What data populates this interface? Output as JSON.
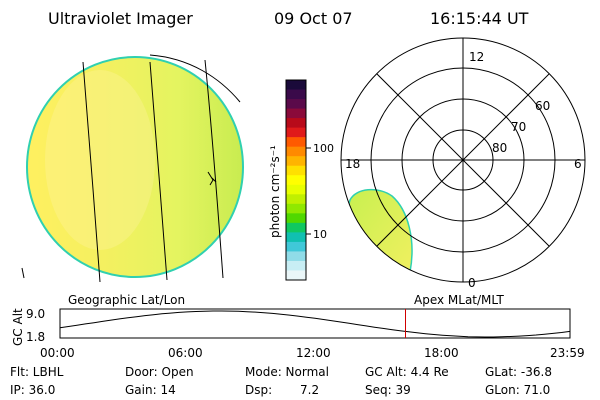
{
  "header": {
    "instrument": "Ultraviolet Imager",
    "date": "09 Oct 07",
    "time": "16:15:44 UT"
  },
  "colorbar": {
    "unit_label": "photon cm⁻²s⁻¹",
    "tick_100": "100",
    "tick_10": "10",
    "colors": [
      "#1a0a3a",
      "#3a0a4a",
      "#5a0a4a",
      "#8a0a3a",
      "#b80a1a",
      "#e01a1a",
      "#ff5a00",
      "#ff8a00",
      "#ffb400",
      "#ffe000",
      "#ffff00",
      "#e8ff00",
      "#c0f000",
      "#90e800",
      "#50d800",
      "#10c860",
      "#10c0b0",
      "#40c8d8",
      "#90dce8",
      "#c8eef4",
      "#eaf6f8"
    ]
  },
  "polar": {
    "label_12": "12",
    "label_18": "18",
    "label_6": "6",
    "label_0": "0",
    "lat_60": "60",
    "lat_70": "70",
    "lat_80": "80"
  },
  "panel_labels": {
    "left": "Geographic Lat/Lon",
    "right": "Apex MLat/MLT"
  },
  "timeline": {
    "ylabel": "GC Alt",
    "y_top": "9.0",
    "y_bottom": "1.8",
    "times": [
      "00:00",
      "06:00",
      "12:00",
      "18:00",
      "23:59"
    ],
    "current_time_hours": 16.26
  },
  "info": {
    "flt": "Flt: LBHL",
    "ip": "IP: 36.0",
    "door": "Door: Open",
    "gain": "Gain: 14",
    "mode": "Mode: Normal",
    "dsp_label": "Dsp:",
    "dsp_value": "7.2",
    "gcalt": "GC Alt: 4.4 Re",
    "seq": "Seq: 39",
    "glat": "GLat: -36.8",
    "glon": "GLon: 71.0"
  }
}
